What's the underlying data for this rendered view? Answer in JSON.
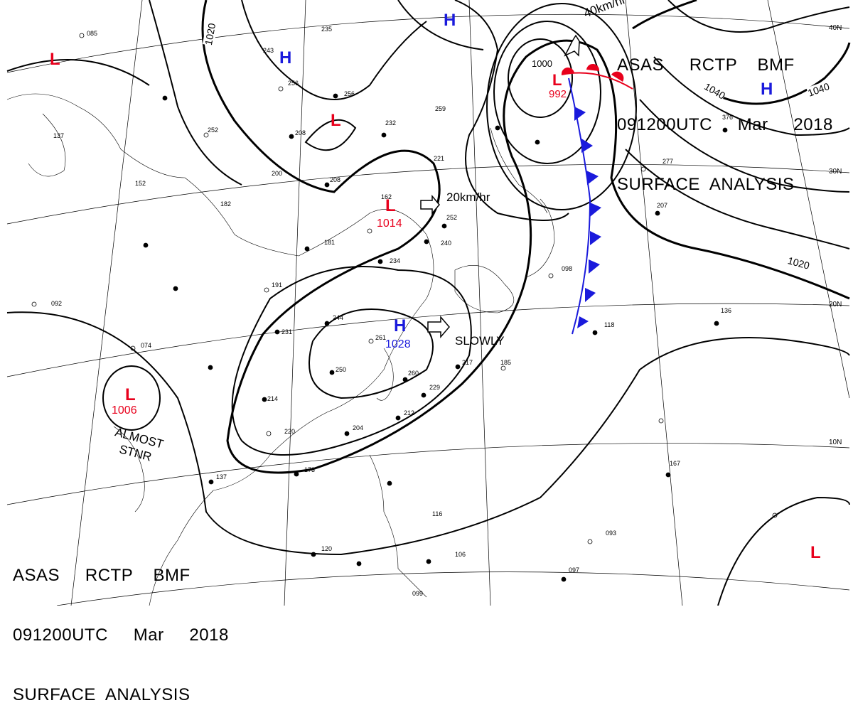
{
  "header": {
    "line1": "ASAS     RCTP    BMF",
    "line2": "091200UTC     Mar     2018",
    "line3": "SURFACE  ANALYSIS"
  },
  "footer": {
    "line1": "ASAS     RCTP    BMF",
    "line2": "091200UTC     Mar     2018",
    "line3": "SURFACE  ANALYSIS"
  },
  "colors": {
    "low": "#e8001c",
    "high": "#1a1adc",
    "line": "#000000",
    "cold_front": "#1a1adc",
    "warm_front": "#e8001c"
  },
  "pressure_systems": [
    {
      "type": "L",
      "label": "L",
      "value": "992",
      "color": "#e8001c"
    },
    {
      "type": "L",
      "label": "L",
      "value": "1014",
      "color": "#e8001c"
    },
    {
      "type": "H",
      "label": "H",
      "value": "1028",
      "color": "#1a1adc"
    },
    {
      "type": "L",
      "label": "L",
      "value": "1006",
      "color": "#e8001c"
    },
    {
      "type": "H",
      "label": "H",
      "value": "",
      "color": "#1a1adc"
    },
    {
      "type": "H",
      "label": "H",
      "value": "",
      "color": "#1a1adc"
    },
    {
      "type": "H",
      "label": "H",
      "value": "",
      "color": "#1a1adc"
    },
    {
      "type": "L",
      "label": "L",
      "value": "",
      "color": "#e8001c"
    },
    {
      "type": "L",
      "label": "L",
      "value": "",
      "color": "#e8001c"
    },
    {
      "type": "L",
      "label": "L",
      "value": "",
      "color": "#e8001c"
    }
  ],
  "isobar_labels": [
    "1020",
    "1000",
    "1040",
    "1040",
    "1020"
  ],
  "motion_labels": [
    "40km/hr",
    "20km/hr",
    "SLOWLY",
    "ALMOST",
    "STNR"
  ],
  "latitude_labels": [
    "40N",
    "30N",
    "20N",
    "10N"
  ],
  "station_obs": [
    "085",
    "235",
    "243",
    "256",
    "208",
    "252",
    "232",
    "259",
    "256",
    "137",
    "182",
    "200",
    "208",
    "152",
    "221",
    "162",
    "252",
    "240",
    "191",
    "181",
    "234",
    "244",
    "261",
    "250",
    "260",
    "229",
    "217",
    "185",
    "231",
    "214",
    "220",
    "204",
    "212",
    "173",
    "137",
    "120",
    "092",
    "074",
    "098",
    "118",
    "136",
    "376",
    "277",
    "207",
    "093",
    "097",
    "167",
    "106",
    "116",
    "099"
  ]
}
